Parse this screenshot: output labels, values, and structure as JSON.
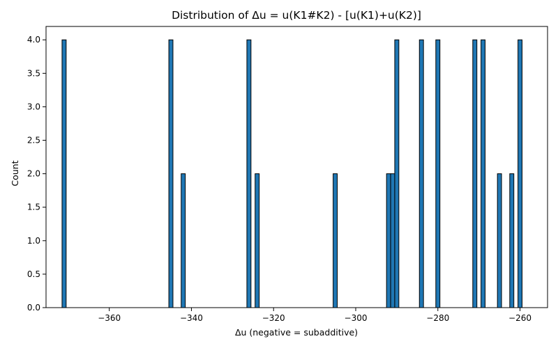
{
  "chart_data": {
    "type": "bar",
    "title": "Distribution of Δu = u(K1#K2) - [u(K1)+u(K2)]",
    "xlabel": "Δu (negative = subadditive)",
    "ylabel": "Count",
    "xlim": [
      -375.4,
      -253.3
    ],
    "ylim": [
      0,
      4.2
    ],
    "bin_width": 1.0,
    "grid": false,
    "bar_color": "#1f77b4",
    "edge_color": "#000000",
    "x_ticks": [
      -360,
      -340,
      -320,
      -300,
      -280,
      -260
    ],
    "x_tick_labels": [
      "−360",
      "−340",
      "−320",
      "−300",
      "−280",
      "−260"
    ],
    "y_ticks": [
      0.0,
      0.5,
      1.0,
      1.5,
      2.0,
      2.5,
      3.0,
      3.5,
      4.0
    ],
    "y_tick_labels": [
      "0.0",
      "0.5",
      "1.0",
      "1.5",
      "2.0",
      "2.5",
      "3.0",
      "3.5",
      "4.0"
    ],
    "bins": [
      {
        "x": -371.0,
        "count": 4
      },
      {
        "x": -345.0,
        "count": 4
      },
      {
        "x": -342.0,
        "count": 2
      },
      {
        "x": -326.0,
        "count": 4
      },
      {
        "x": -324.0,
        "count": 2
      },
      {
        "x": -305.0,
        "count": 2
      },
      {
        "x": -292.0,
        "count": 2
      },
      {
        "x": -291.0,
        "count": 2
      },
      {
        "x": -290.0,
        "count": 4
      },
      {
        "x": -284.0,
        "count": 4
      },
      {
        "x": -280.0,
        "count": 4
      },
      {
        "x": -271.0,
        "count": 4
      },
      {
        "x": -269.0,
        "count": 4
      },
      {
        "x": -265.0,
        "count": 2
      },
      {
        "x": -262.0,
        "count": 2
      },
      {
        "x": -260.0,
        "count": 4
      }
    ]
  }
}
